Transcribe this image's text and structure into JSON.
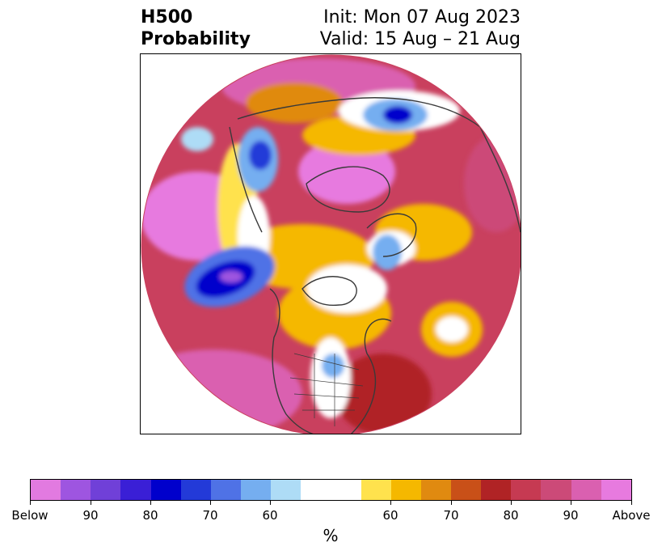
{
  "title": {
    "left_line1": "H500",
    "left_line2": "Probability",
    "right_line1": "Init: Mon 07 Aug 2023",
    "right_line2": "Valid: 15 Aug – 21 Aug"
  },
  "map": {
    "projection": "north-polar-stereographic",
    "disc_fill": "#c9405e",
    "coastline_color": "#3a3a3a"
  },
  "colorbar": {
    "colors": [
      "#e27ae0",
      "#9e55e0",
      "#7040d8",
      "#3a1fd6",
      "#0000cc",
      "#233ad8",
      "#4f72e6",
      "#75aef0",
      "#aedcf6",
      "#ffffff",
      "#ffe24d",
      "#f5b800",
      "#e08a10",
      "#c95018",
      "#b02325",
      "#c63a52",
      "#cc4a78",
      "#da60b0",
      "#e77adf"
    ],
    "tick_labels": [
      "Below",
      "90",
      "80",
      "70",
      "60",
      "60",
      "70",
      "80",
      "90",
      "Above"
    ],
    "label": "%"
  }
}
